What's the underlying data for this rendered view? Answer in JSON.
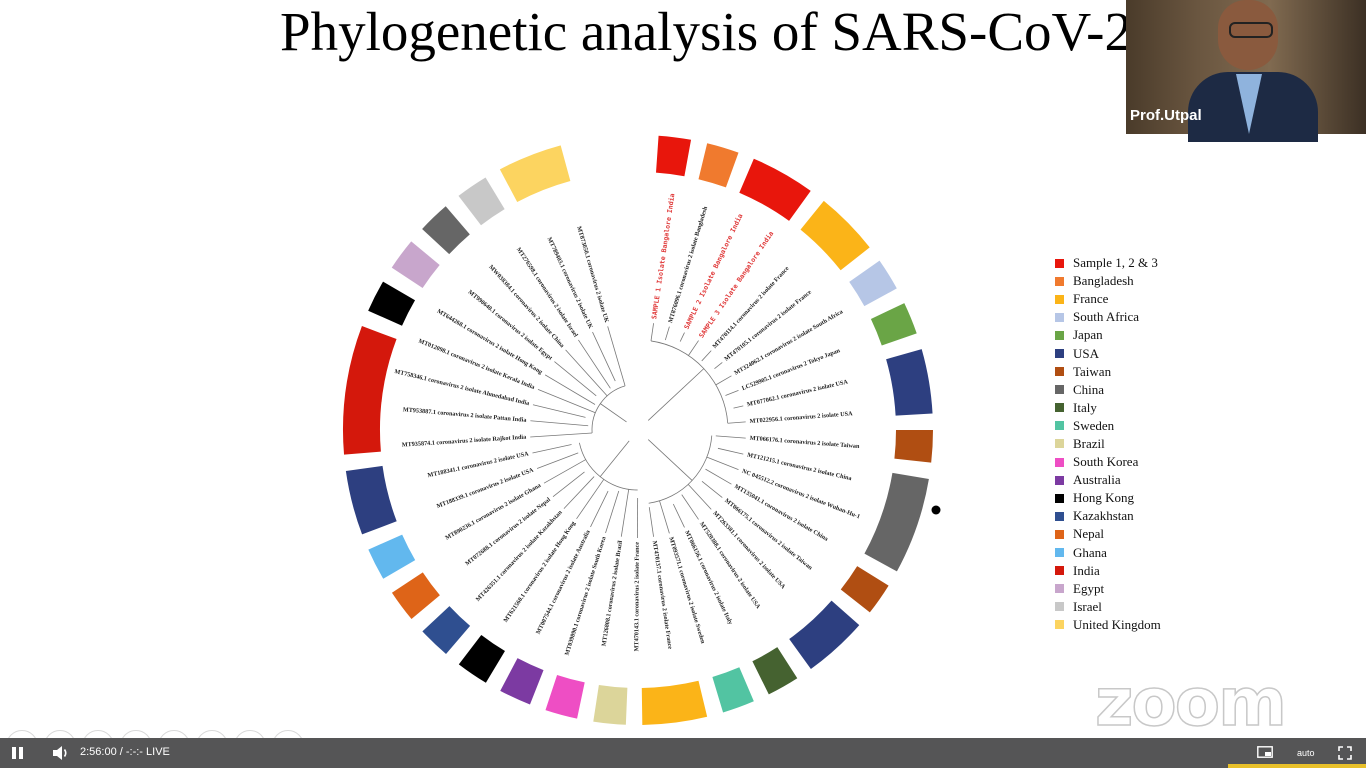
{
  "slide": {
    "title": "Phylogenetic analysis of SARS-CoV-2"
  },
  "legend": [
    {
      "label": "Sample 1, 2 & 3",
      "color": "#e8160c"
    },
    {
      "label": "Bangladesh",
      "color": "#f07a2e"
    },
    {
      "label": "France",
      "color": "#fbb418"
    },
    {
      "label": "South Africa",
      "color": "#b6c6e6"
    },
    {
      "label": "Japan",
      "color": "#6aa546"
    },
    {
      "label": "USA",
      "color": "#2d3f80"
    },
    {
      "label": "Taiwan",
      "color": "#b04e12"
    },
    {
      "label": "China",
      "color": "#666666"
    },
    {
      "label": "Italy",
      "color": "#456230"
    },
    {
      "label": "Sweden",
      "color": "#52c4a2"
    },
    {
      "label": "Brazil",
      "color": "#dcd59a"
    },
    {
      "label": "South Korea",
      "color": "#ee4ec4"
    },
    {
      "label": "Australia",
      "color": "#7c3aa2"
    },
    {
      "label": "Hong Kong",
      "color": "#000000"
    },
    {
      "label": "Kazakhstan",
      "color": "#2f4f90"
    },
    {
      "label": "Nepal",
      "color": "#de6418"
    },
    {
      "label": "Ghana",
      "color": "#62b8ee"
    },
    {
      "label": "India",
      "color": "#d4180c"
    },
    {
      "label": "Egypt",
      "color": "#c8a6cc"
    },
    {
      "label": "Israel",
      "color": "#c8c8c8"
    },
    {
      "label": "United Kingdom",
      "color": "#fcd460"
    }
  ],
  "tree_leaves": [
    {
      "label": "SAMPLE 1 Isolate Bangalore India",
      "highlight": true
    },
    {
      "label": "MT876096.1 coronavirus 2 isolate Bangladesh",
      "highlight": false
    },
    {
      "label": "SAMPLE 2 Isolate Bangalore India",
      "highlight": true
    },
    {
      "label": "SAMPLE 3 Isolate Bangalore India",
      "highlight": true
    },
    {
      "label": "MT470114.1 coronavirus 2 isolate France",
      "highlight": false
    },
    {
      "label": "MT470105.1 coronavirus 2 isolate France",
      "highlight": false
    },
    {
      "label": "MT324062.1 coronavirus 2 isolate South Africa",
      "highlight": false
    },
    {
      "label": "LC529905.1 coronavirus 2 Tokyo Japan",
      "highlight": false
    },
    {
      "label": "MT077062.1 coronavirus 2 isolate USA",
      "highlight": false
    },
    {
      "label": "MT022956.1 coronavirus 2 isolate USA",
      "highlight": false
    },
    {
      "label": "MT066176.1 coronavirus 2 isolate Taiwan",
      "highlight": false
    },
    {
      "label": "MT121215.1 coronavirus 2 isolate China",
      "highlight": false
    },
    {
      "label": "NC 045512.2 coronavirus 2 isolate Wuhan-Hu-1",
      "highlight": false
    },
    {
      "label": "MT135041.1 coronavirus 2 isolate China",
      "highlight": false
    },
    {
      "label": "MT066175.1 coronavirus 2 isolate Taiwan",
      "highlight": false
    },
    {
      "label": "MT263381.1 coronavirus 2 isolate USA",
      "highlight": false
    },
    {
      "label": "MT520388.1 coronavirus 2 isolate USA",
      "highlight": false
    },
    {
      "label": "MT066156.1 coronavirus 2 isolate Italy",
      "highlight": false
    },
    {
      "label": "MT093571.1 coronavirus 2 isolate Sweden",
      "highlight": false
    },
    {
      "label": "MT470137.1 coronavirus 2 isolate France",
      "highlight": false
    },
    {
      "label": "MT470143.1 coronavirus 2 isolate France",
      "highlight": false
    },
    {
      "label": "MT126808.1 coronavirus 2 isolate Brazil",
      "highlight": false
    },
    {
      "label": "MT039890.1 coronavirus 2 isolate South Korea",
      "highlight": false
    },
    {
      "label": "MT007544.1 coronavirus 2 isolate Australia",
      "highlight": false
    },
    {
      "label": "MT621560.1 coronavirus 2 isolate Hong Kong",
      "highlight": false
    },
    {
      "label": "MT426351.1 coronavirus 2 isolate Kazakhstan",
      "highlight": false
    },
    {
      "label": "MT072688.1 coronavirus 2 isolate Nepal",
      "highlight": false
    },
    {
      "label": "MT890236.1 coronavirus 2 isolate Ghana",
      "highlight": false
    },
    {
      "label": "MT188339.1 coronavirus 2 isolate USA",
      "highlight": false
    },
    {
      "label": "MT188341.1 coronavirus 2 isolate USA",
      "highlight": false
    },
    {
      "label": "MT935874.1 coronavirus 2 isolate Rajkot India",
      "highlight": false
    },
    {
      "label": "MT953887.1 coronavirus 2 isolate Pattan India",
      "highlight": false
    },
    {
      "label": "MT758346.1 coronavirus 2 isolate Ahmedabad India",
      "highlight": false
    },
    {
      "label": "MT012098.1 coronavirus 2 isolate Kerala India",
      "highlight": false
    },
    {
      "label": "MT644268.1 coronavirus 2 isolate Hong Kong",
      "highlight": false
    },
    {
      "label": "MT990640.1 coronavirus 2 isolate Egypt",
      "highlight": false
    },
    {
      "label": "MW038384.1 coronavirus 2 isolate China",
      "highlight": false
    },
    {
      "label": "MT276598.1 coronavirus 2 isolate Israel",
      "highlight": false
    },
    {
      "label": "MT789403.1 coronavirus 2 isolate UK",
      "highlight": false
    },
    {
      "label": "MT873050.1 coronavirus 2 isolate UK",
      "highlight": false
    }
  ],
  "ring_segments": [
    {
      "country": "Sample 1, 2 & 3",
      "color": "#e8160c",
      "span": 1
    },
    {
      "country": "Bangladesh",
      "color": "#f07a2e",
      "span": 1
    },
    {
      "country": "Sample 1, 2 & 3",
      "color": "#e8160c",
      "span": 2
    },
    {
      "country": "France",
      "color": "#fbb418",
      "span": 2
    },
    {
      "country": "South Africa",
      "color": "#b6c6e6",
      "span": 1
    },
    {
      "country": "Japan",
      "color": "#6aa546",
      "span": 1
    },
    {
      "country": "USA",
      "color": "#2d3f80",
      "span": 2
    },
    {
      "country": "Taiwan",
      "color": "#b04e12",
      "span": 1
    },
    {
      "country": "China",
      "color": "#666666",
      "span": 3
    },
    {
      "country": "Taiwan",
      "color": "#b04e12",
      "span": 1
    },
    {
      "country": "USA",
      "color": "#2d3f80",
      "span": 2
    },
    {
      "country": "Italy",
      "color": "#456230",
      "span": 1
    },
    {
      "country": "Sweden",
      "color": "#52c4a2",
      "span": 1
    },
    {
      "country": "France",
      "color": "#fbb418",
      "span": 2
    },
    {
      "country": "Brazil",
      "color": "#dcd59a",
      "span": 1
    },
    {
      "country": "South Korea",
      "color": "#ee4ec4",
      "span": 1
    },
    {
      "country": "Australia",
      "color": "#7c3aa2",
      "span": 1
    },
    {
      "country": "Hong Kong",
      "color": "#000000",
      "span": 1
    },
    {
      "country": "Kazakhstan",
      "color": "#2f4f90",
      "span": 1
    },
    {
      "country": "Nepal",
      "color": "#de6418",
      "span": 1
    },
    {
      "country": "Ghana",
      "color": "#62b8ee",
      "span": 1
    },
    {
      "country": "USA",
      "color": "#2d3f80",
      "span": 2
    },
    {
      "country": "India",
      "color": "#d4180c",
      "span": 4
    },
    {
      "country": "Hong Kong",
      "color": "#000000",
      "span": 1
    },
    {
      "country": "Egypt",
      "color": "#c8a6cc",
      "span": 1
    },
    {
      "country": "China",
      "color": "#666666",
      "span": 1
    },
    {
      "country": "Israel",
      "color": "#c8c8c8",
      "span": 1
    },
    {
      "country": "United Kingdom",
      "color": "#fcd460",
      "span": 2
    }
  ],
  "video": {
    "participant_name": "Prof.Utpal"
  },
  "watermark": {
    "text": "zoom"
  },
  "player": {
    "time_text": "2:56:00 / -:-:- LIVE",
    "quality_label": "auto",
    "icons": [
      "pause-icon",
      "volume-icon",
      "picture-in-picture-icon",
      "fullscreen-icon"
    ]
  }
}
